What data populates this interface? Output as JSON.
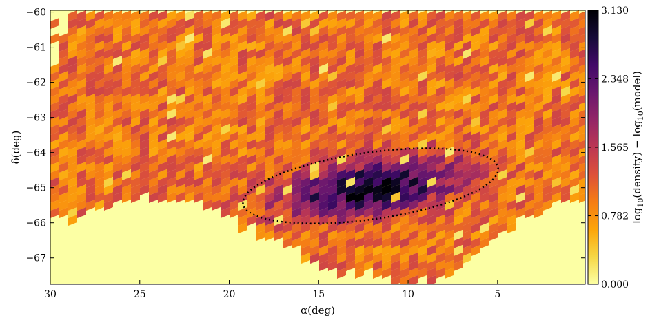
{
  "chart_data": {
    "type": "heatmap",
    "title": "",
    "xlabel": "α(deg)",
    "ylabel": "δ(deg)",
    "xlim": [
      30,
      0.1
    ],
    "ylim": [
      -67.75,
      -59.95
    ],
    "x_inverted": true,
    "xticks": [
      30,
      25,
      20,
      15,
      10,
      5
    ],
    "xtick_labels": [
      "30",
      "25",
      "20",
      "15",
      "10",
      "5"
    ],
    "yticks": [
      -60,
      -61,
      -62,
      -63,
      -64,
      -65,
      -66,
      -67
    ],
    "ytick_labels": [
      "−60",
      "−61",
      "−62",
      "−63",
      "−64",
      "−65",
      "−66",
      "−67"
    ],
    "colorbar": {
      "label": "log10(density) − log10(model)",
      "label_parts": {
        "a": "log",
        "a_sub": "10",
        "b": "(density) − log",
        "b_sub": "10",
        "c": "(model)"
      },
      "min": 0.0,
      "max": 3.13,
      "ticks": [
        "3.130",
        "2.348",
        "1.565",
        "0.782",
        "0.000"
      ],
      "colormap": "inferno_r"
    },
    "overdensity": {
      "center_ra": 12.1,
      "center_dec": -64.95,
      "peak_value": 3.13,
      "ellipse_semi_major_deg": 7.2,
      "ellipse_semi_minor_deg": 0.95,
      "ellipse_style": "dotted"
    },
    "background_level": 1.0,
    "grid": false,
    "legend": "none"
  }
}
